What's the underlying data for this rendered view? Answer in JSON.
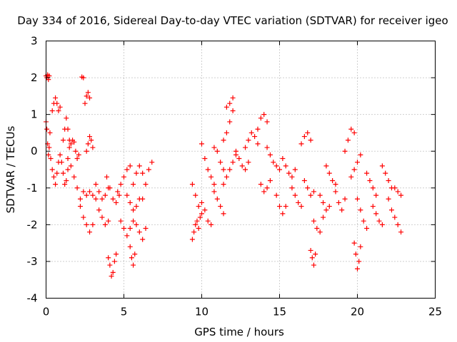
{
  "chart_data": {
    "type": "scatter",
    "title": "Day 334 of 2016, Sidereal Day-to-day VTEC variation (SDTVAR) for receiver igeo",
    "xlabel": "GPS time / hours",
    "ylabel": "SDTVAR / TECUs",
    "xlim": [
      0,
      25
    ],
    "ylim": [
      -4,
      3
    ],
    "x_ticks": [
      "0",
      "5",
      "10",
      "15",
      "20",
      "25"
    ],
    "y_ticks": [
      "-4",
      "-3",
      "-2",
      "-1",
      "0",
      "1",
      "2",
      "3"
    ],
    "grid": true,
    "marker": "+",
    "colors": {
      "points": "#ff0000",
      "grid": "#a0a0a0",
      "axes": "#000000"
    },
    "series": [
      {
        "name": "SDTVAR",
        "tracks": [
          {
            "x": [
              0.0,
              0.05,
              0.1,
              0.15,
              0.2
            ],
            "y": [
              2.05,
              2.0,
              2.08,
              1.95,
              2.05
            ]
          },
          {
            "x": [
              0.0,
              0.05,
              0.1,
              0.15,
              0.2,
              0.25
            ],
            "y": [
              0.8,
              0.6,
              0.2,
              -0.1,
              0.1,
              0.5
            ]
          },
          {
            "x": [
              0.4,
              0.5,
              0.6,
              0.7,
              0.8,
              0.9
            ],
            "y": [
              1.1,
              1.3,
              1.45,
              1.3,
              1.1,
              1.2
            ]
          },
          {
            "x": [
              0.3,
              0.4,
              0.5,
              0.6,
              0.7,
              0.8,
              0.9
            ],
            "y": [
              -0.2,
              -0.5,
              -0.7,
              -0.9,
              -0.6,
              -0.3,
              -0.1
            ]
          },
          {
            "x": [
              1.0,
              1.1,
              1.2,
              1.3,
              1.4
            ],
            "y": [
              -0.3,
              -0.6,
              -0.9,
              -0.8,
              -0.5
            ]
          },
          {
            "x": [
              1.1,
              1.2,
              1.3,
              1.4,
              1.5
            ],
            "y": [
              0.3,
              0.6,
              0.9,
              0.6,
              0.3
            ]
          },
          {
            "x": [
              1.4,
              1.6,
              1.8,
              2.0,
              2.2
            ],
            "y": [
              -0.2,
              -0.4,
              -0.7,
              -1.0,
              -1.3
            ]
          },
          {
            "x": [
              1.5,
              1.6,
              1.7,
              1.8,
              1.9,
              2.0,
              2.1
            ],
            "y": [
              0.1,
              0.2,
              0.3,
              0.25,
              0.0,
              -0.2,
              -0.1
            ]
          },
          {
            "x": [
              2.3,
              2.4
            ],
            "y": [
              2.02,
              2.0
            ]
          },
          {
            "x": [
              2.5,
              2.6,
              2.7,
              2.8
            ],
            "y": [
              1.3,
              1.5,
              1.6,
              1.45
            ]
          },
          {
            "x": [
              2.6,
              2.7,
              2.8,
              2.9,
              3.0
            ],
            "y": [
              0.0,
              0.2,
              0.4,
              0.3,
              0.1
            ]
          },
          {
            "x": [
              2.2,
              2.4,
              2.6,
              2.8,
              3.0
            ],
            "y": [
              -1.5,
              -1.8,
              -2.0,
              -2.2,
              -2.0
            ]
          },
          {
            "x": [
              2.4,
              2.6,
              2.8,
              3.0,
              3.2
            ],
            "y": [
              -1.1,
              -1.2,
              -1.1,
              -1.2,
              -1.3
            ]
          },
          {
            "x": [
              3.2,
              3.4,
              3.6,
              3.8,
              4.0
            ],
            "y": [
              -0.9,
              -1.1,
              -1.3,
              -1.2,
              -1.0
            ]
          },
          {
            "x": [
              3.4,
              3.6,
              3.8,
              4.0
            ],
            "y": [
              -1.6,
              -1.8,
              -2.0,
              -1.9
            ]
          },
          {
            "x": [
              4.0,
              4.1,
              4.2,
              4.3,
              4.4,
              4.5
            ],
            "y": [
              -2.9,
              -3.1,
              -3.4,
              -3.3,
              -3.0,
              -2.8
            ]
          },
          {
            "x": [
              3.9,
              4.1,
              4.3,
              4.5,
              4.7
            ],
            "y": [
              -0.7,
              -1.0,
              -1.3,
              -1.4,
              -1.2
            ]
          },
          {
            "x": [
              4.6,
              4.8,
              5.0,
              5.2,
              5.4
            ],
            "y": [
              -1.1,
              -0.9,
              -0.7,
              -0.5,
              -0.4
            ]
          },
          {
            "x": [
              4.8,
              5.0,
              5.2,
              5.4,
              5.6
            ],
            "y": [
              -1.9,
              -2.1,
              -2.3,
              -2.1,
              -1.9
            ]
          },
          {
            "x": [
              5.2,
              5.4,
              5.6,
              5.8,
              6.0
            ],
            "y": [
              -1.2,
              -1.4,
              -1.6,
              -1.5,
              -1.3
            ]
          },
          {
            "x": [
              5.4,
              5.5,
              5.6,
              5.7
            ],
            "y": [
              -2.6,
              -2.9,
              -3.1,
              -2.8
            ]
          },
          {
            "x": [
              5.6,
              5.8,
              6.0,
              6.2
            ],
            "y": [
              -0.9,
              -0.6,
              -0.4,
              -0.6
            ]
          },
          {
            "x": [
              5.8,
              6.0,
              6.2,
              6.4
            ],
            "y": [
              -2.0,
              -2.2,
              -2.4,
              -2.1
            ]
          },
          {
            "x": [
              6.2,
              6.4,
              6.6,
              6.8
            ],
            "y": [
              -1.3,
              -0.9,
              -0.5,
              -0.3
            ]
          },
          {
            "x": [
              9.4,
              9.6,
              9.8,
              10.0
            ],
            "y": [
              -0.9,
              -1.2,
              -1.5,
              -1.7
            ]
          },
          {
            "x": [
              9.4,
              9.5,
              9.6,
              9.7,
              9.8,
              9.9
            ],
            "y": [
              -2.4,
              -2.2,
              -2.0,
              -1.9,
              -2.1,
              -1.8
            ]
          },
          {
            "x": [
              10.0,
              10.2,
              10.4,
              10.6
            ],
            "y": [
              -1.4,
              -1.6,
              -1.9,
              -2.0
            ]
          },
          {
            "x": [
              10.0,
              10.2,
              10.4,
              10.6,
              10.8
            ],
            "y": [
              0.2,
              -0.2,
              -0.5,
              -0.7,
              -0.9
            ]
          },
          {
            "x": [
              10.8,
              11.0,
              11.2,
              11.4
            ],
            "y": [
              -1.1,
              -1.3,
              -1.5,
              -1.7
            ]
          },
          {
            "x": [
              10.8,
              11.0,
              11.2,
              11.4
            ],
            "y": [
              0.1,
              0.0,
              -0.3,
              -0.5
            ]
          },
          {
            "x": [
              11.4,
              11.6,
              11.8,
              12.0
            ],
            "y": [
              0.3,
              0.5,
              0.8,
              1.1
            ]
          },
          {
            "x": [
              11.6,
              11.8,
              12.0
            ],
            "y": [
              1.2,
              1.3,
              1.45
            ]
          },
          {
            "x": [
              11.4,
              11.6,
              11.8,
              12.0,
              12.2
            ],
            "y": [
              -0.9,
              -0.7,
              -0.5,
              -0.3,
              -0.1
            ]
          },
          {
            "x": [
              12.2,
              12.4,
              12.6,
              12.8,
              13.0
            ],
            "y": [
              0.0,
              -0.2,
              -0.4,
              -0.5,
              -0.3
            ]
          },
          {
            "x": [
              12.8,
              13.0,
              13.2,
              13.4,
              13.6
            ],
            "y": [
              0.1,
              0.3,
              0.5,
              0.4,
              0.2
            ]
          },
          {
            "x": [
              13.6,
              13.8,
              14.0,
              14.2
            ],
            "y": [
              0.6,
              0.9,
              1.0,
              0.8
            ]
          },
          {
            "x": [
              13.8,
              14.0,
              14.2,
              14.4
            ],
            "y": [
              -0.9,
              -1.1,
              -1.0,
              -0.8
            ]
          },
          {
            "x": [
              14.2,
              14.4,
              14.6,
              14.8,
              15.0
            ],
            "y": [
              0.1,
              -0.1,
              -0.3,
              -0.4,
              -0.5
            ]
          },
          {
            "x": [
              14.8,
              15.0,
              15.2,
              15.4
            ],
            "y": [
              -1.2,
              -1.5,
              -1.7,
              -1.5
            ]
          },
          {
            "x": [
              15.2,
              15.4,
              15.6,
              15.8,
              16.0
            ],
            "y": [
              -0.2,
              -0.4,
              -0.6,
              -0.7,
              -0.5
            ]
          },
          {
            "x": [
              15.8,
              16.0,
              16.2,
              16.4
            ],
            "y": [
              -1.0,
              -1.2,
              -1.4,
              -1.5
            ]
          },
          {
            "x": [
              16.4,
              16.6,
              16.8,
              17.0
            ],
            "y": [
              0.2,
              0.4,
              0.5,
              0.3
            ]
          },
          {
            "x": [
              16.6,
              16.8,
              17.0,
              17.2
            ],
            "y": [
              -0.8,
              -1.0,
              -1.2,
              -1.1
            ]
          },
          {
            "x": [
              17.0,
              17.1,
              17.2,
              17.3
            ],
            "y": [
              -2.7,
              -2.9,
              -3.1,
              -2.8
            ]
          },
          {
            "x": [
              17.2,
              17.4,
              17.6,
              17.8
            ],
            "y": [
              -1.9,
              -2.1,
              -2.2,
              -1.8
            ]
          },
          {
            "x": [
              17.6,
              17.8,
              18.0,
              18.2
            ],
            "y": [
              -1.2,
              -1.4,
              -1.6,
              -1.5
            ]
          },
          {
            "x": [
              18.0,
              18.2,
              18.4,
              18.6
            ],
            "y": [
              -0.4,
              -0.6,
              -0.8,
              -0.9
            ]
          },
          {
            "x": [
              18.6,
              18.8,
              19.0,
              19.2
            ],
            "y": [
              -1.1,
              -1.4,
              -1.6,
              -1.3
            ]
          },
          {
            "x": [
              19.2,
              19.4,
              19.6,
              19.8
            ],
            "y": [
              0.0,
              0.3,
              0.6,
              0.5
            ]
          },
          {
            "x": [
              19.6,
              19.8,
              20.0,
              20.2
            ],
            "y": [
              -0.7,
              -0.5,
              -0.3,
              -0.1
            ]
          },
          {
            "x": [
              19.8,
              19.9,
              20.0,
              20.1,
              20.2
            ],
            "y": [
              -2.5,
              -2.8,
              -3.2,
              -3.0,
              -2.6
            ]
          },
          {
            "x": [
              20.0,
              20.2,
              20.4,
              20.6
            ],
            "y": [
              -1.3,
              -1.6,
              -1.9,
              -2.1
            ]
          },
          {
            "x": [
              20.6,
              20.8,
              21.0,
              21.2
            ],
            "y": [
              -0.6,
              -0.8,
              -1.0,
              -1.2
            ]
          },
          {
            "x": [
              21.0,
              21.2,
              21.4,
              21.6
            ],
            "y": [
              -1.5,
              -1.7,
              -1.9,
              -2.0
            ]
          },
          {
            "x": [
              21.6,
              21.8,
              22.0,
              22.2
            ],
            "y": [
              -0.4,
              -0.6,
              -0.8,
              -1.0
            ]
          },
          {
            "x": [
              22.0,
              22.2,
              22.4,
              22.6,
              22.8
            ],
            "y": [
              -1.3,
              -1.6,
              -1.8,
              -2.0,
              -2.2
            ]
          },
          {
            "x": [
              22.4,
              22.6,
              22.8
            ],
            "y": [
              -1.0,
              -1.1,
              -1.2
            ]
          }
        ]
      }
    ]
  }
}
